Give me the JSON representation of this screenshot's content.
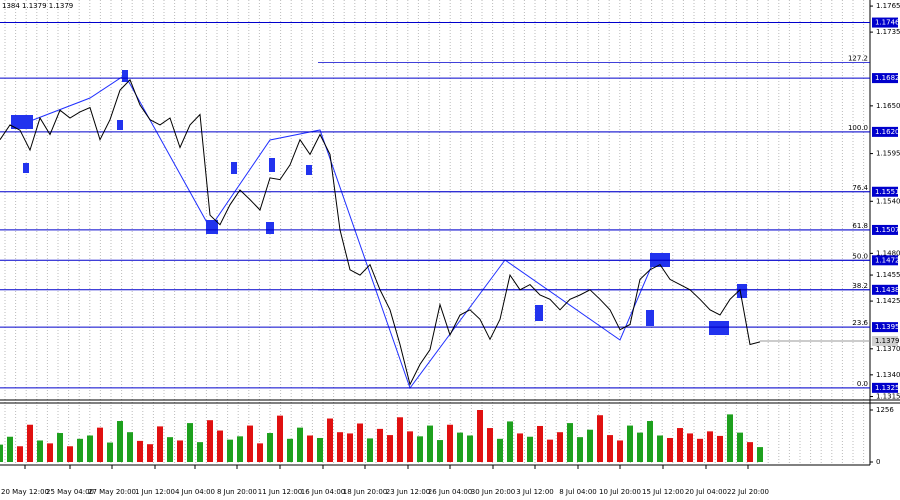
{
  "header": "1384 1.1379 1.1379",
  "chart_data": {
    "type": "line",
    "series": [
      {
        "color": "#000000",
        "values": [
          1.1611,
          1.1628,
          1.1622,
          1.1599,
          1.1636,
          1.1617,
          1.1645,
          1.1636,
          1.1643,
          1.1648,
          1.1611,
          1.1634,
          1.1668,
          1.168,
          1.1651,
          1.1634,
          1.1628,
          1.1636,
          1.1602,
          1.1628,
          1.164,
          1.1524,
          1.1513,
          1.1536,
          1.1553,
          1.1542,
          1.153,
          1.1567,
          1.1565,
          1.1582,
          1.1611,
          1.1594,
          1.1617,
          1.1594,
          1.1507,
          1.1461,
          1.1455,
          1.1467,
          1.1438,
          1.1415,
          1.1375,
          1.1329,
          1.1352,
          1.1369,
          1.1421,
          1.1386,
          1.1409,
          1.1415,
          1.1404,
          1.1381,
          1.1404,
          1.1455,
          1.1438,
          1.1444,
          1.1432,
          1.1427,
          1.1415,
          1.1427,
          1.1432,
          1.1438,
          1.1427,
          1.1415,
          1.1392,
          1.1398,
          1.145,
          1.1461,
          1.1467,
          1.145,
          1.1444,
          1.1438,
          1.1427,
          1.1415,
          1.1409,
          1.1427,
          1.1438,
          1.1375,
          1.1378
        ]
      }
    ],
    "ylim": [
      1.1311,
      1.1772
    ],
    "yticks": [
      {
        "value": 1.1765,
        "label": "1.1765"
      },
      {
        "value": 1.1735,
        "label": "1.1735"
      },
      {
        "value": 1.165,
        "label": "1.1650"
      },
      {
        "value": 1.1595,
        "label": "1.1595"
      },
      {
        "value": 1.154,
        "label": "1.1540"
      },
      {
        "value": 1.148,
        "label": "1.1480"
      },
      {
        "value": 1.1455,
        "label": "1.1455"
      },
      {
        "value": 1.1425,
        "label": "1.1425"
      },
      {
        "value": 1.137,
        "label": "1.1370"
      },
      {
        "value": 1.134,
        "label": "1.1340"
      },
      {
        "value": 1.1315,
        "label": "1.1315"
      }
    ],
    "xlim": [
      0,
      76
    ],
    "xticks": [
      {
        "value": 2.5,
        "label": "20 May 12:00"
      },
      {
        "value": 7,
        "label": "25 May 04:00"
      },
      {
        "value": 11.2,
        "label": "27 May 20:00"
      },
      {
        "value": 15.5,
        "label": "1 Jun 12:00"
      },
      {
        "value": 19.5,
        "label": "4 Jun 04:00"
      },
      {
        "value": 23.7,
        "label": "8 Jun 20:00"
      },
      {
        "value": 28,
        "label": "11 Jun 12:00"
      },
      {
        "value": 32.3,
        "label": "16 Jun 04:00"
      },
      {
        "value": 36.5,
        "label": "18 Jun 20:00"
      },
      {
        "value": 40.8,
        "label": "23 Jun 12:00"
      },
      {
        "value": 45,
        "label": "26 Jun 04:00"
      },
      {
        "value": 49.3,
        "label": "30 Jun 20:00"
      },
      {
        "value": 53.5,
        "label": "3 Jul 12:00"
      },
      {
        "value": 57.8,
        "label": "8 Jul 04:00"
      },
      {
        "value": 62,
        "label": "10 Jul 20:00"
      },
      {
        "value": 66.3,
        "label": "15 Jul 12:00"
      },
      {
        "value": 70.6,
        "label": "20 Jul 04:00"
      },
      {
        "value": 74.8,
        "label": "22 Jul 20:00"
      }
    ],
    "price_levels": [
      {
        "value": 1.1746,
        "label": "1.1746"
      },
      {
        "value": 1.1682,
        "label": "1.1682"
      },
      {
        "value": 1.162,
        "label": "1.1620"
      },
      {
        "value": 1.1551,
        "label": "1.1551"
      },
      {
        "value": 1.1507,
        "label": "1.1507"
      },
      {
        "value": 1.1472,
        "label": "1.1472"
      },
      {
        "value": 1.1438,
        "label": "1.1438"
      },
      {
        "value": 1.1395,
        "label": "1.1395"
      },
      {
        "value": 1.1325,
        "label": "1.1325"
      }
    ],
    "level_color": "#0000cc",
    "fib_levels": [
      {
        "price": 1.17,
        "label": "127.2"
      },
      {
        "price": 1.162,
        "label": "100.0"
      },
      {
        "price": 1.1551,
        "label": "76.4"
      },
      {
        "price": 1.1507,
        "label": "61.8"
      },
      {
        "price": 1.1472,
        "label": "50.0"
      },
      {
        "price": 1.1438,
        "label": "38.2"
      },
      {
        "price": 1.1395,
        "label": "23.6"
      },
      {
        "price": 1.1325,
        "label": "0.0"
      }
    ],
    "last_price": 1.1379,
    "volume": {
      "values": [
        420,
        610,
        380,
        900,
        520,
        450,
        700,
        380,
        560,
        640,
        830,
        470,
        990,
        720,
        510,
        430,
        860,
        600,
        520,
        940,
        480,
        1010,
        760,
        540,
        620,
        880,
        450,
        700,
        1120,
        560,
        830,
        640,
        580,
        1050,
        720,
        690,
        930,
        570,
        800,
        650,
        1080,
        740,
        620,
        880,
        530,
        900,
        710,
        640,
        1256,
        820,
        560,
        980,
        690,
        610,
        870,
        540,
        720,
        940,
        600,
        780,
        1130,
        650,
        520,
        880,
        710,
        990,
        640,
        580,
        820,
        690,
        560,
        740,
        630,
        1150,
        710,
        480,
        360
      ],
      "ylim": [
        0,
        1256
      ],
      "yticks": [
        1256,
        0
      ],
      "up_color": "#1ea01e",
      "down_color": "#e01010"
    }
  }
}
